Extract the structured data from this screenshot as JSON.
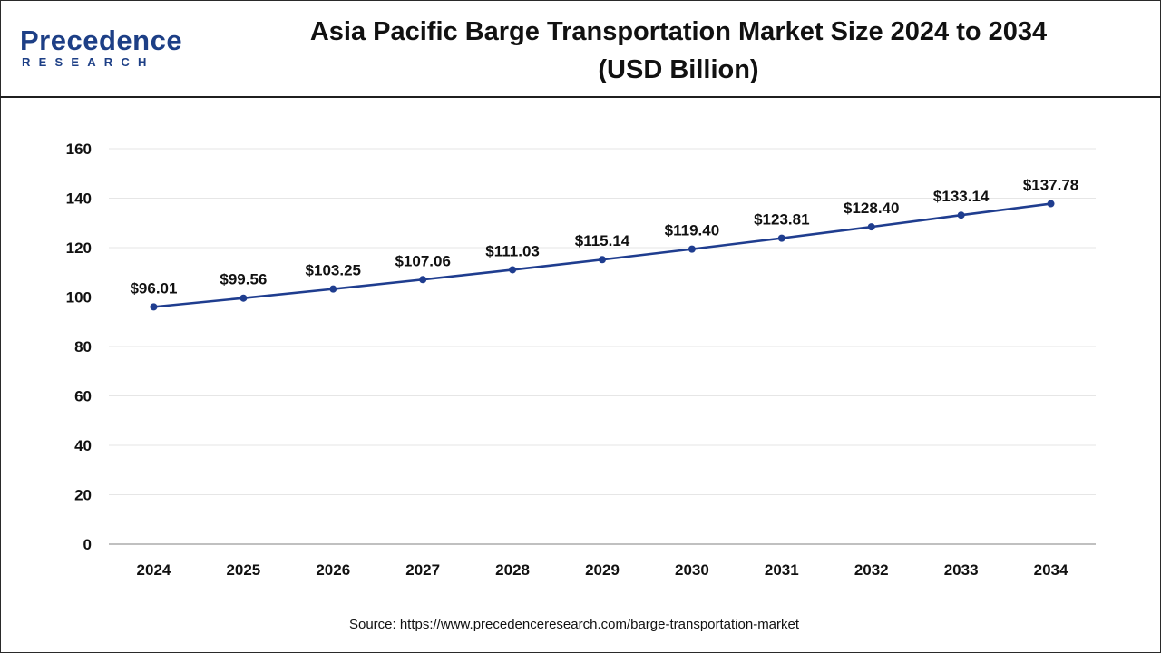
{
  "header": {
    "logo_word": "Precedence",
    "logo_sub": "RESEARCH",
    "title_line1": "Asia Pacific Barge Transportation Market Size 2024 to 2034",
    "title_line2": "(USD Billion)"
  },
  "source": "Source: https://www.precedenceresearch.com/barge-transportation-market",
  "colors": {
    "line": "#1f3d8f",
    "logo": "#1d3f86",
    "grid": "#e6e6e6",
    "axis": "#9a9a9a"
  },
  "chart_data": {
    "type": "line",
    "title": "Asia Pacific Barge Transportation Market Size 2024 to 2034 (USD Billion)",
    "xlabel": "",
    "ylabel": "",
    "categories": [
      "2024",
      "2025",
      "2026",
      "2027",
      "2028",
      "2029",
      "2030",
      "2031",
      "2032",
      "2033",
      "2034"
    ],
    "series": [
      {
        "values": [
          96.01,
          99.56,
          103.25,
          107.06,
          111.03,
          115.14,
          119.4,
          123.81,
          128.4,
          133.14,
          137.78
        ],
        "labels": [
          "$96.01",
          "$99.56",
          "$103.25",
          "$107.06",
          "$111.03",
          "$115.14",
          "$119.40",
          "$123.81",
          "$128.40",
          "$133.14",
          "$137.78"
        ]
      }
    ],
    "ylim": [
      0,
      160
    ],
    "yticks": [
      0,
      20,
      40,
      60,
      80,
      100,
      120,
      140,
      160
    ],
    "grid": true,
    "legend": "none"
  }
}
